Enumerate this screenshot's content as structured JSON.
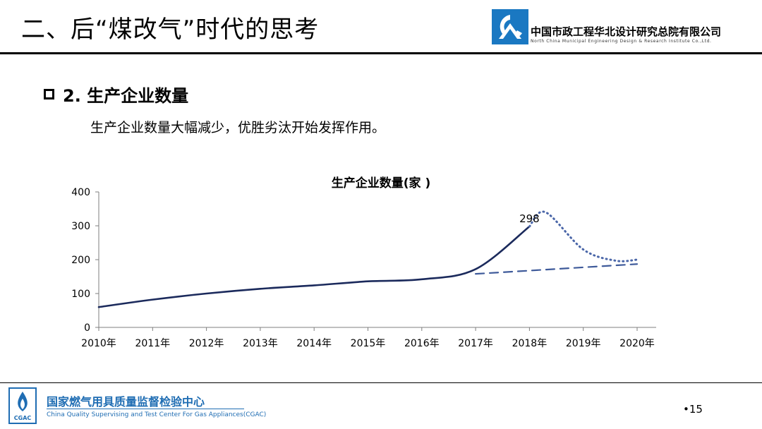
{
  "header": {
    "title": "二、后“煤改气”时代的思考",
    "org_name": "中国市政工程华北设计研究总院有限公司",
    "org_name_en": "North China Municipal Engineering Design & Research Institute Co.,Ltd."
  },
  "section": {
    "title": "2. 生产企业数量",
    "description": "生产企业数量大幅减少，优胜劣汰开始发挥作用。"
  },
  "chart_data": {
    "type": "line",
    "title": "生产企业数量(家 )",
    "categories": [
      "2010年",
      "2011年",
      "2012年",
      "2013年",
      "2014年",
      "2015年",
      "2016年",
      "2017年",
      "2018年",
      "2019年",
      "2020年"
    ],
    "ylim": [
      0,
      400
    ],
    "yticks": [
      "0",
      "100",
      "200",
      "300",
      "400"
    ],
    "grid": false,
    "series": [
      {
        "style": "solid",
        "color": "#1b2a5c",
        "points": [
          {
            "x": "2010年",
            "y": 60
          },
          {
            "x": "2011年",
            "y": 82
          },
          {
            "x": "2012年",
            "y": 100
          },
          {
            "x": "2013年",
            "y": 114
          },
          {
            "x": "2014年",
            "y": 124
          },
          {
            "x": "2015年",
            "y": 136
          },
          {
            "x": "2016年",
            "y": 142
          },
          {
            "x": "2017年",
            "y": 172
          },
          {
            "x": "2018年",
            "y": 298
          }
        ]
      },
      {
        "style": "dotted",
        "color": "#4a66a8",
        "points": [
          {
            "x": "2018年",
            "y": 298
          },
          {
            "x": "2018.3",
            "y": 340
          },
          {
            "x": "2019年",
            "y": 230
          },
          {
            "x": "2019.6",
            "y": 197
          },
          {
            "x": "2020年",
            "y": 200
          }
        ]
      },
      {
        "style": "dashed",
        "color": "#3e5a9a",
        "points": [
          {
            "x": "2017年",
            "y": 158
          },
          {
            "x": "2020年",
            "y": 187
          }
        ]
      }
    ],
    "annotations": [
      {
        "text": "298",
        "x": "2018年",
        "y": 298
      }
    ]
  },
  "footer": {
    "center_name": "国家燃气用具质量监督检验中心",
    "center_name_en": "China Quality Supervising and Test Center For Gas Appliances(CGAC)",
    "logo_text": "CGAC",
    "page_number": "•15"
  },
  "colors": {
    "footer_blue": "#1f6db3",
    "solid_line": "#1b2a5c",
    "dotted_line": "#4a66a8",
    "dashed_line": "#3e5a9a"
  }
}
